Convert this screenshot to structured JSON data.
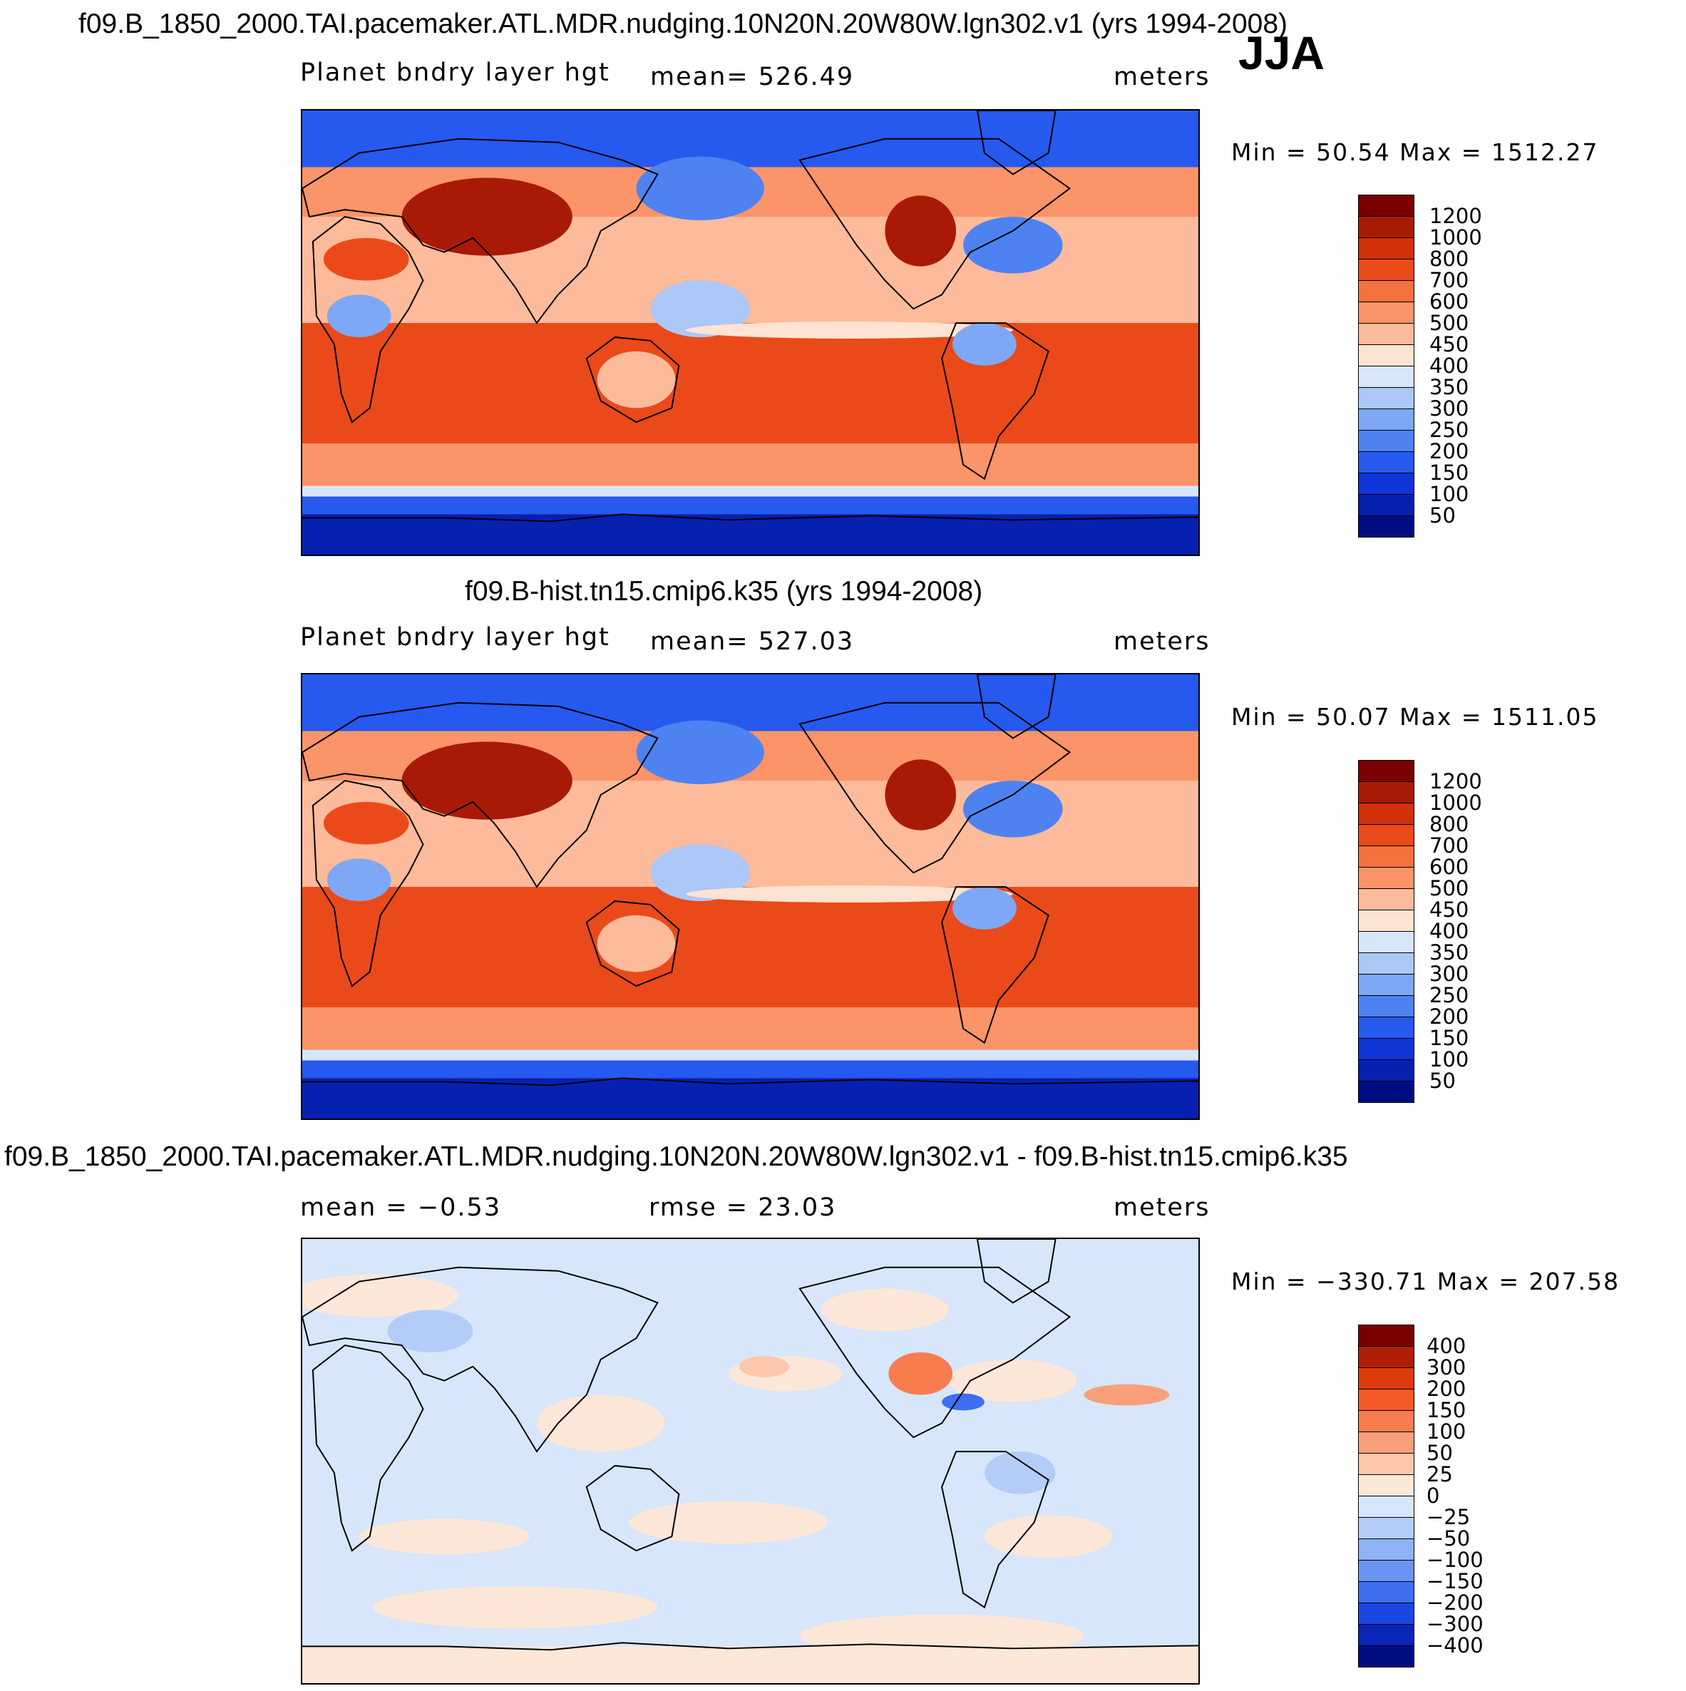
{
  "season": "JJA",
  "panels": [
    {
      "title": "f09.B_1850_2000.TAI.pacemaker.ATL.MDR.nudging.10N20N.20W80W.lgn302.v1 (yrs 1994-2008)",
      "left_label": "Planet bndry layer hgt",
      "center_label": "mean=  526.49",
      "right_label": "meters",
      "min_max": "Min =   50.54  Max  =  1512.27",
      "kind": "absolute"
    },
    {
      "title": "f09.B-hist.tn15.cmip6.k35 (yrs 1994-2008)",
      "left_label": "Planet bndry layer hgt",
      "center_label": "mean=  527.03",
      "right_label": "meters",
      "min_max": "Min =   50.07  Max  =  1511.05",
      "kind": "absolute"
    },
    {
      "title": "f09.B_1850_2000.TAI.pacemaker.ATL.MDR.nudging.10N20N.20W80W.lgn302.v1 - f09.B-hist.tn15.cmip6.k35",
      "left_label": "mean  =    −0.53",
      "center_label": "rmse  =    23.03",
      "right_label": "meters",
      "min_max": "Min  =  −330.71  Max  =  207.58",
      "kind": "difference"
    }
  ],
  "chart_data": [
    {
      "type": "heatmap",
      "title": "f09.B_1850_2000.TAI.pacemaker.ATL.MDR.nudging.10N20N.20W80W.lgn302.v1 (yrs 1994-2008)",
      "variable": "Planet bndry layer hgt",
      "units": "meters",
      "mean": 526.49,
      "min": 50.54,
      "max": 1512.27,
      "colorbar_levels": [
        50,
        100,
        150,
        200,
        250,
        300,
        350,
        400,
        450,
        500,
        600,
        700,
        800,
        1000,
        1200
      ]
    },
    {
      "type": "heatmap",
      "title": "f09.B-hist.tn15.cmip6.k35 (yrs 1994-2008)",
      "variable": "Planet bndry layer hgt",
      "units": "meters",
      "mean": 527.03,
      "min": 50.07,
      "max": 1511.05,
      "colorbar_levels": [
        50,
        100,
        150,
        200,
        250,
        300,
        350,
        400,
        450,
        500,
        600,
        700,
        800,
        1000,
        1200
      ]
    },
    {
      "type": "heatmap",
      "title": "f09.B_1850_2000.TAI.pacemaker.ATL.MDR.nudging.10N20N.20W80W.lgn302.v1 - f09.B-hist.tn15.cmip6.k35",
      "units": "meters",
      "mean": -0.53,
      "rmse": 23.03,
      "min": -330.71,
      "max": 207.58,
      "colorbar_levels": [
        -400,
        -300,
        -200,
        -150,
        -100,
        -50,
        -25,
        0,
        25,
        50,
        100,
        150,
        200,
        300,
        400
      ]
    }
  ],
  "colorbars": {
    "absolute": {
      "labels": [
        "1200",
        "1000",
        "800",
        "700",
        "600",
        "500",
        "450",
        "400",
        "350",
        "300",
        "250",
        "200",
        "150",
        "100",
        "50"
      ],
      "colors": [
        "#7a0000",
        "#a81a05",
        "#d23008",
        "#ea4a1a",
        "#f5713e",
        "#fb9468",
        "#fdbb9b",
        "#fde3d1",
        "#d7e6fa",
        "#abc8f8",
        "#7ea8f5",
        "#4f82f1",
        "#2659ee",
        "#0f34d8",
        "#0620b0",
        "#000d80"
      ]
    },
    "difference": {
      "labels": [
        "400",
        "300",
        "200",
        "150",
        "100",
        "50",
        "25",
        "0",
        "−25",
        "−50",
        "−100",
        "−150",
        "−200",
        "−300",
        "−400"
      ],
      "colors": [
        "#7a0000",
        "#b01e05",
        "#de3a0c",
        "#f45a26",
        "#f77d4f",
        "#f9a07a",
        "#fcc7ab",
        "#fde7d8",
        "#d7e6fa",
        "#b4cdf8",
        "#8fb2f6",
        "#6a94f3",
        "#3f6ff0",
        "#1c46e2",
        "#0a26b8",
        "#000d80"
      ]
    }
  }
}
